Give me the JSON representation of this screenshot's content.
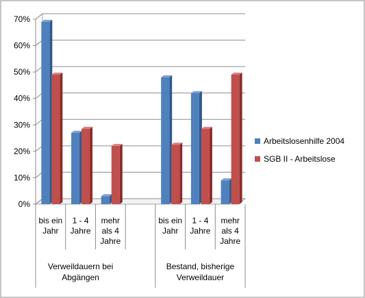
{
  "chart_data": {
    "type": "bar",
    "title": "",
    "xlabel": "",
    "ylabel": "",
    "ylim": [
      0,
      70
    ],
    "y_ticks": [
      0,
      10,
      20,
      30,
      40,
      50,
      60,
      70
    ],
    "y_tick_labels": [
      "0%",
      "10%",
      "20%",
      "30%",
      "40%",
      "50%",
      "60%",
      "70%"
    ],
    "grid": true,
    "legend_position": "right",
    "style": "3d-clustered-column",
    "groups": [
      {
        "label": [
          "Verweildauern bei",
          "Abgängen"
        ],
        "categories": [
          [
            "bis ein",
            "Jahr"
          ],
          [
            "1 - 4",
            "Jahre"
          ],
          [
            "mehr",
            "als 4",
            "Jahre"
          ]
        ]
      },
      {
        "label": [
          "Bestand, bisherige",
          "Verweildauer"
        ],
        "categories": [
          [
            "bis ein",
            "Jahr"
          ],
          [
            "1 - 4",
            "Jahre"
          ],
          [
            "mehr",
            "als 4",
            "Jahre"
          ]
        ]
      }
    ],
    "series": [
      {
        "name": "Arbeitslosenhilfe 2004",
        "color": "#4F81BD",
        "side_color": "#2E5A8E",
        "top_color": "#7FA3D1",
        "values": [
          69,
          27,
          3,
          48,
          42,
          9
        ]
      },
      {
        "name": "SGB II - Arbeitslose",
        "color": "#C0504D",
        "side_color": "#8C2D2A",
        "top_color": "#D9807E",
        "values": [
          49,
          28.5,
          22,
          22.5,
          28.5,
          49
        ]
      }
    ]
  }
}
